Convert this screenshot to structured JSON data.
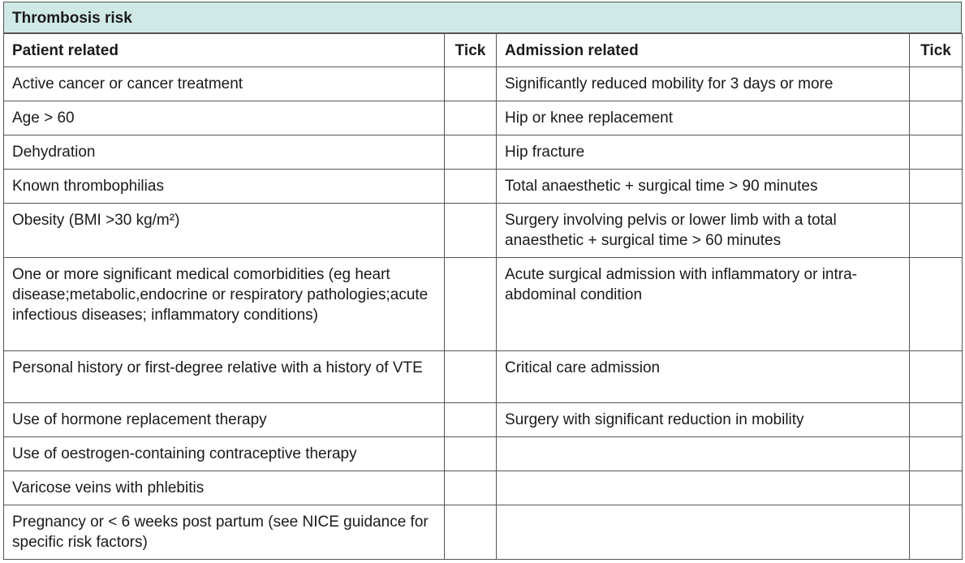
{
  "table": {
    "title": "Thrombosis risk",
    "header": [
      "Patient related",
      "Tick",
      "Admission related",
      "Tick"
    ],
    "rows": [
      {
        "patient": "Active cancer or cancer treatment",
        "admission": "Significantly reduced mobility for 3 days or more"
      },
      {
        "patient": "Age > 60",
        "admission": "Hip or knee replacement"
      },
      {
        "patient": "Dehydration",
        "admission": "Hip fracture"
      },
      {
        "patient": "Known thrombophilias",
        "admission": "Total anaesthetic + surgical time > 90 minutes"
      },
      {
        "patient": "Obesity (BMI >30 kg/m²)",
        "admission": "Surgery involving pelvis or lower limb with a total anaesthetic + surgical time > 60 minutes"
      },
      {
        "patient": "One or more significant medical comorbidities (eg heart disease;metabolic,endocrine or respiratory pathologies;acute infectious diseases; inflammatory conditions)",
        "admission": "Acute surgical admission with inflammatory or intra-abdominal condition"
      },
      {
        "patient": "Personal history or first-degree relative with a history of VTE",
        "admission": "Critical care admission"
      },
      {
        "patient": "Use of hormone replacement therapy",
        "admission": "Surgery with significant reduction in  mobility"
      },
      {
        "patient": "Use of oestrogen-containing contraceptive therapy"
      },
      {
        "patient": "Varicose veins with phlebitis"
      },
      {
        "patient": "Pregnancy or < 6 weeks post partum (see NICE guidance for specific risk factors)"
      }
    ]
  }
}
